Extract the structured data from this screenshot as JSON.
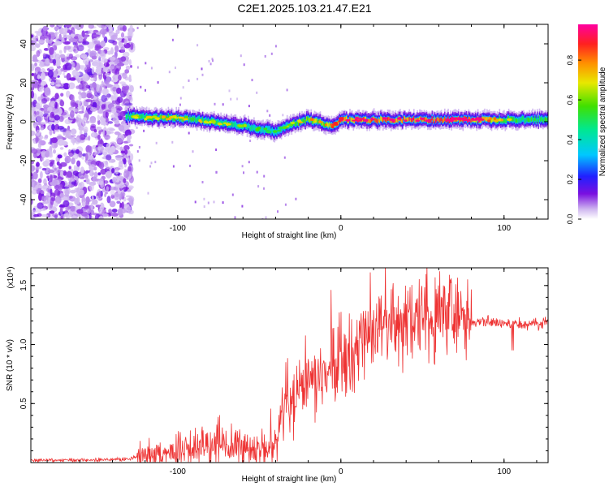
{
  "figure": {
    "title": "C2E1.2025.103.21.47.E21"
  },
  "chart_data": [
    {
      "type": "heatmap",
      "xlabel": "Height of straight line (km)",
      "ylabel": "Frequency (Hz)",
      "xlim": [
        -190,
        127
      ],
      "ylim": [
        -50,
        50
      ],
      "xticks": [
        -100,
        0,
        100
      ],
      "yticks": [
        -40,
        -20,
        0,
        20,
        40
      ],
      "colorbar": {
        "label": "Normalized spectral amplitude",
        "range": [
          0,
          0.98
        ],
        "ticks": [
          0.0,
          0.2,
          0.4,
          0.6,
          0.8
        ]
      },
      "grid": false,
      "ridge": {
        "x": [
          -132,
          -120,
          -110,
          -100,
          -90,
          -80,
          -70,
          -60,
          -50,
          -40,
          -35,
          -30,
          -25,
          -20,
          -10,
          -5,
          0,
          10,
          20,
          40,
          60,
          80,
          100,
          127
        ],
        "frequency": [
          3,
          2,
          2,
          2,
          1,
          0,
          -1,
          -2,
          -4,
          -5,
          -3,
          -1,
          0,
          1,
          -1,
          -2,
          1,
          1,
          1,
          1,
          1,
          1,
          1,
          1
        ],
        "amplitude": [
          0.5,
          0.55,
          0.6,
          0.6,
          0.6,
          0.55,
          0.55,
          0.5,
          0.45,
          0.4,
          0.45,
          0.55,
          0.6,
          0.65,
          0.7,
          0.75,
          0.8,
          0.85,
          0.88,
          0.9,
          0.9,
          0.88,
          0.6,
          0.55
        ]
      }
    },
    {
      "type": "line",
      "xlabel": "Height of straight line (km)",
      "ylabel": "SNR (10 * v/v)",
      "y_scale_label": "(x10⁴)",
      "xlim": [
        -190,
        127
      ],
      "ylim": [
        0,
        1.65
      ],
      "xticks": [
        -100,
        0,
        100
      ],
      "yticks": [
        0.5,
        1.0,
        1.5
      ],
      "y_units": "x10^4",
      "color": "#ee3333",
      "series": [
        {
          "x": [
            -190,
            -160,
            -130,
            -122,
            -115,
            -105,
            -100,
            -90,
            -80,
            -75,
            -70,
            -60,
            -50,
            -45,
            -40,
            -35,
            -30,
            -25,
            -20,
            -15,
            -10,
            -5,
            0,
            5,
            10,
            20,
            30,
            40,
            45,
            50,
            60,
            70,
            80,
            90,
            100,
            105,
            110,
            120,
            127
          ],
          "values": [
            0.02,
            0.02,
            0.03,
            0.06,
            0.07,
            0.08,
            0.1,
            0.12,
            0.16,
            0.2,
            0.17,
            0.14,
            0.09,
            0.12,
            0.18,
            0.4,
            0.52,
            0.55,
            0.62,
            0.68,
            0.7,
            0.78,
            0.82,
            0.9,
            0.98,
            1.1,
            1.18,
            1.22,
            1.27,
            1.25,
            1.24,
            1.23,
            1.2,
            1.19,
            1.18,
            1.17,
            1.17,
            1.17,
            1.18
          ]
        }
      ]
    }
  ]
}
